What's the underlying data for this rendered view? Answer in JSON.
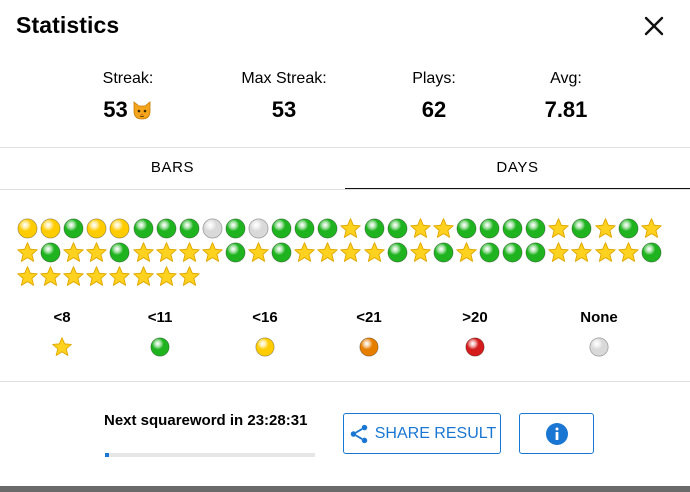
{
  "dialog": {
    "title": "Statistics"
  },
  "stats": [
    {
      "label": "Streak:",
      "value": "53",
      "emoji": "cat-face-icon"
    },
    {
      "label": "Max Streak:",
      "value": "53"
    },
    {
      "label": "Plays:",
      "value": "62"
    },
    {
      "label": "Avg:",
      "value": "7.81"
    }
  ],
  "tabs": [
    {
      "label": "BARS",
      "active": false
    },
    {
      "label": "DAYS",
      "active": true
    }
  ],
  "colors": {
    "star": "#ffd21f",
    "green": "#1fb41f",
    "yellow": "#ffcc00",
    "orange": "#e67e00",
    "red": "#d41c1c",
    "none": "#d9d9d9",
    "accent": "#1976d2"
  },
  "days": [
    "yellow",
    "yellow",
    "green",
    "yellow",
    "yellow",
    "green",
    "green",
    "green",
    "none",
    "green",
    "none",
    "green",
    "green",
    "green",
    "star",
    "green",
    "green",
    "star",
    "star",
    "green",
    "green",
    "green",
    "green",
    "star",
    "green",
    "star",
    "green",
    "star",
    "star",
    "green",
    "star",
    "star",
    "green",
    "star",
    "star",
    "star",
    "star",
    "green",
    "star",
    "green",
    "star",
    "star",
    "star",
    "star",
    "green",
    "star",
    "green",
    "star",
    "green",
    "green",
    "green",
    "star",
    "star",
    "star",
    "star",
    "green",
    "star",
    "star",
    "star",
    "star",
    "star",
    "star",
    "star",
    "star"
  ],
  "legend": [
    {
      "label": "<8",
      "mark": "star"
    },
    {
      "label": "<11",
      "mark": "green"
    },
    {
      "label": "<16",
      "mark": "yellow"
    },
    {
      "label": "<21",
      "mark": "orange"
    },
    {
      "label": ">20",
      "mark": "red"
    },
    {
      "label": "None",
      "mark": "none"
    }
  ],
  "footer": {
    "countdown": "Next squareword in 23:28:31",
    "progress": 0.02,
    "share_label": "SHARE RESULT"
  }
}
